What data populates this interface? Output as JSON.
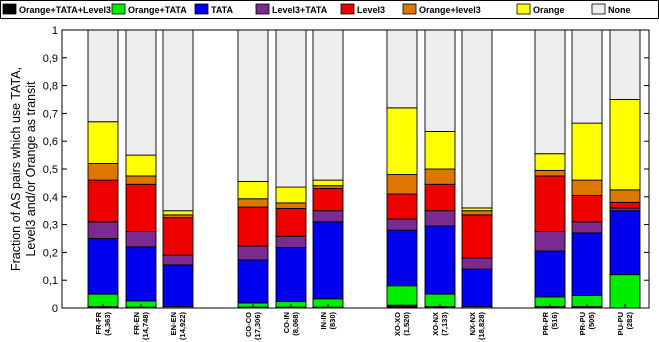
{
  "chart_data": {
    "type": "bar",
    "stacked": true,
    "ylabel_lines": [
      "Fraction of AS pairs which use TATA,",
      "Level3 and/or Orange as transit"
    ],
    "xlabel": "",
    "title": "",
    "ylim": [
      0,
      1
    ],
    "yticks": [
      "0",
      "0,1",
      "0,2",
      "0,3",
      "0,4",
      "0,5",
      "0,6",
      "0,7",
      "0,8",
      "0,9",
      "1"
    ],
    "ytick_values": [
      0,
      0.1,
      0.2,
      0.3,
      0.4,
      0.5,
      0.6,
      0.7,
      0.8,
      0.9,
      1
    ],
    "legend_position": "top",
    "grid": false,
    "series": [
      {
        "name": "Orange+TATA+Level3",
        "color": "#000000"
      },
      {
        "name": "Orange+TATA",
        "color": "#00ee00"
      },
      {
        "name": "TATA",
        "color": "#0000ee"
      },
      {
        "name": "Level3+TATA",
        "color": "#7b2b8f"
      },
      {
        "name": "Level3",
        "color": "#ee0000"
      },
      {
        "name": "Orange+level3",
        "color": "#dd7700"
      },
      {
        "name": "Orange",
        "color": "#ffff00"
      },
      {
        "name": "None",
        "color": "#eeeeee"
      }
    ],
    "categories": [
      {
        "label": "FR-FR",
        "count": "(4,363)",
        "group": 0,
        "values": [
          0.005,
          0.045,
          0.2,
          0.06,
          0.15,
          0.06,
          0.15,
          0.33
        ]
      },
      {
        "label": "FR-EN",
        "count": "(14,748)",
        "group": 0,
        "values": [
          0.003,
          0.022,
          0.195,
          0.055,
          0.17,
          0.03,
          0.075,
          0.45
        ]
      },
      {
        "label": "EN-EN",
        "count": "(14,922)",
        "group": 0,
        "values": [
          0.0,
          0.005,
          0.15,
          0.035,
          0.135,
          0.01,
          0.015,
          0.65
        ]
      },
      {
        "label": "CO-CO",
        "count": "(17,306)",
        "group": 1,
        "values": [
          0.003,
          0.015,
          0.155,
          0.05,
          0.14,
          0.03,
          0.062,
          0.545
        ]
      },
      {
        "label": "CO-IN",
        "count": "(8,068)",
        "group": 1,
        "values": [
          0.003,
          0.02,
          0.195,
          0.04,
          0.1,
          0.02,
          0.057,
          0.565
        ]
      },
      {
        "label": "IN-IN",
        "count": "(830)",
        "group": 1,
        "values": [
          0.003,
          0.03,
          0.277,
          0.04,
          0.08,
          0.01,
          0.02,
          0.54
        ]
      },
      {
        "label": "XO-XO",
        "count": "(1,520)",
        "group": 2,
        "values": [
          0.01,
          0.07,
          0.2,
          0.04,
          0.09,
          0.07,
          0.24,
          0.28
        ]
      },
      {
        "label": "XO-NX",
        "count": "(7,133)",
        "group": 2,
        "values": [
          0.005,
          0.045,
          0.245,
          0.055,
          0.095,
          0.055,
          0.135,
          0.365
        ]
      },
      {
        "label": "NX-NX",
        "count": "(18,828)",
        "group": 2,
        "values": [
          0.0,
          0.005,
          0.135,
          0.04,
          0.155,
          0.015,
          0.01,
          0.64
        ]
      },
      {
        "label": "PR-PR",
        "count": "(516)",
        "group": 3,
        "values": [
          0.005,
          0.035,
          0.165,
          0.07,
          0.2,
          0.02,
          0.06,
          0.445
        ]
      },
      {
        "label": "PR-PU",
        "count": "(505)",
        "group": 3,
        "values": [
          0.005,
          0.04,
          0.225,
          0.04,
          0.095,
          0.055,
          0.205,
          0.335
        ]
      },
      {
        "label": "PU-PU",
        "count": "(282)",
        "group": 3,
        "values": [
          0.0,
          0.12,
          0.23,
          0.01,
          0.02,
          0.045,
          0.325,
          0.25
        ]
      }
    ]
  }
}
